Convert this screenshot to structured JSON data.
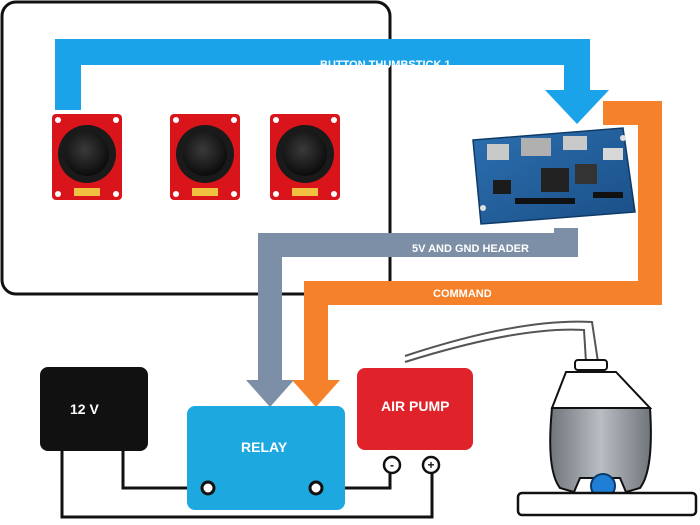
{
  "labels": {
    "button_thumbstick": "BUTTON THUMBSTICK 1",
    "header": "5V AND GND HEADER",
    "command": "COMMAND",
    "power": "12 V",
    "relay": "RELAY",
    "pump": "AIR PUMP",
    "pump_minus": "-",
    "pump_plus": "+"
  },
  "colors": {
    "blue_arrow": "#1aa3e8",
    "gray_arrow": "#7d8fa6",
    "orange_arrow": "#f5822a",
    "power_box": "#111111",
    "relay_box": "#1ea8e0",
    "pump_box": "#e0232b",
    "joystick_board": "#d9141b",
    "cup_body": "#9aa0a6",
    "ball": "#1e7fd4"
  },
  "icons": [
    "thumbstick-module-icon",
    "microcontroller-board-icon",
    "air-cup-icon",
    "switch-contact-icon"
  ]
}
